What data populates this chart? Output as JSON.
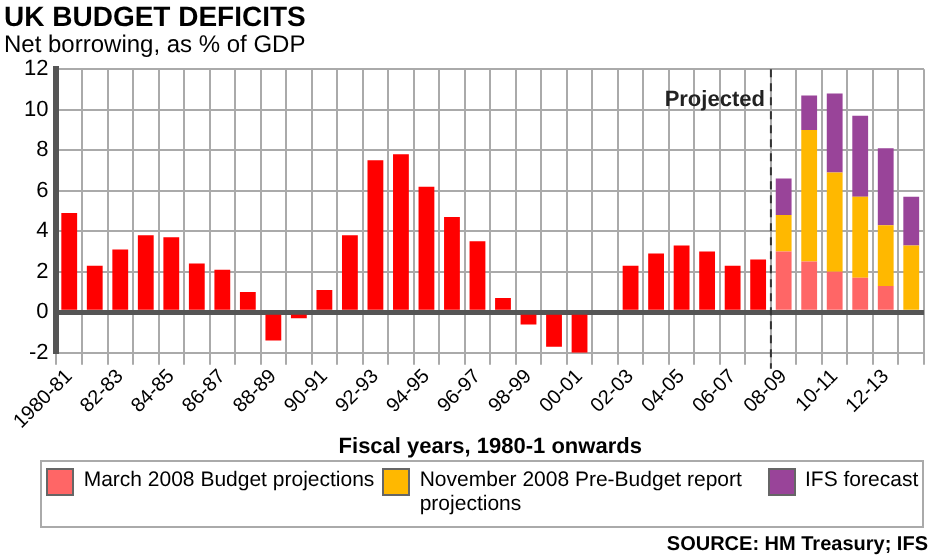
{
  "chart_data": {
    "type": "bar",
    "title": "UK BUDGET DEFICITS",
    "subtitle": "Net borrowing, as % of GDP",
    "xlabel": "Fiscal years, 1980-1 onwards",
    "categories": [
      "1980-81",
      null,
      "82-83",
      null,
      "84-85",
      null,
      "86-87",
      null,
      "88-89",
      null,
      "90-91",
      null,
      "92-93",
      null,
      "94-95",
      null,
      "96-97",
      null,
      "98-99",
      null,
      "00-01",
      null,
      "02-03",
      null,
      "04-05",
      null,
      "06-07",
      null,
      "08-09",
      null,
      "10-11",
      null,
      "12-13",
      null
    ],
    "series": [
      {
        "color": "#ff0000",
        "values": [
          4.9,
          2.3,
          3.1,
          3.8,
          3.7,
          2.4,
          2.1,
          1.0,
          -1.4,
          -0.3,
          1.1,
          3.8,
          7.5,
          7.8,
          6.2,
          4.7,
          3.5,
          0.7,
          -0.6,
          -1.7,
          -2.0,
          null,
          2.3,
          2.9,
          3.3,
          3.0,
          2.3,
          2.6,
          null,
          null,
          null,
          null,
          null,
          null
        ]
      },
      {
        "name": "March 2008 Budget projections",
        "color": "#ff6666",
        "values": [
          null,
          null,
          null,
          null,
          null,
          null,
          null,
          null,
          null,
          null,
          null,
          null,
          null,
          null,
          null,
          null,
          null,
          null,
          null,
          null,
          null,
          null,
          null,
          null,
          null,
          null,
          null,
          null,
          3.0,
          2.5,
          2.0,
          1.7,
          1.3,
          null
        ]
      },
      {
        "name": "November 2008 Pre-Budget report projections",
        "color": "#ffb800",
        "values": [
          null,
          null,
          null,
          null,
          null,
          null,
          null,
          null,
          null,
          null,
          null,
          null,
          null,
          null,
          null,
          null,
          null,
          null,
          null,
          null,
          null,
          null,
          null,
          null,
          null,
          null,
          null,
          null,
          1.8,
          6.5,
          4.9,
          4.0,
          3.0,
          3.3
        ]
      },
      {
        "name": "IFS forecast",
        "color": "#994499",
        "values": [
          null,
          null,
          null,
          null,
          null,
          null,
          null,
          null,
          null,
          null,
          null,
          null,
          null,
          null,
          null,
          null,
          null,
          null,
          null,
          null,
          null,
          null,
          null,
          null,
          null,
          null,
          null,
          null,
          1.8,
          1.7,
          3.9,
          4.0,
          3.8,
          2.4
        ]
      }
    ],
    "stacked": true,
    "ylim": [
      -2,
      12
    ],
    "yticks": [
      -2,
      0,
      2,
      4,
      6,
      8,
      10,
      12
    ],
    "grid": true,
    "legend": "bottom",
    "ref_lines": [
      {
        "axis": "x",
        "value": "08-09",
        "label": "Projected",
        "line_style": "dashed",
        "color": "#333333"
      }
    ],
    "annotations": [
      "SOURCE: HM Treasury; IFS"
    ]
  }
}
